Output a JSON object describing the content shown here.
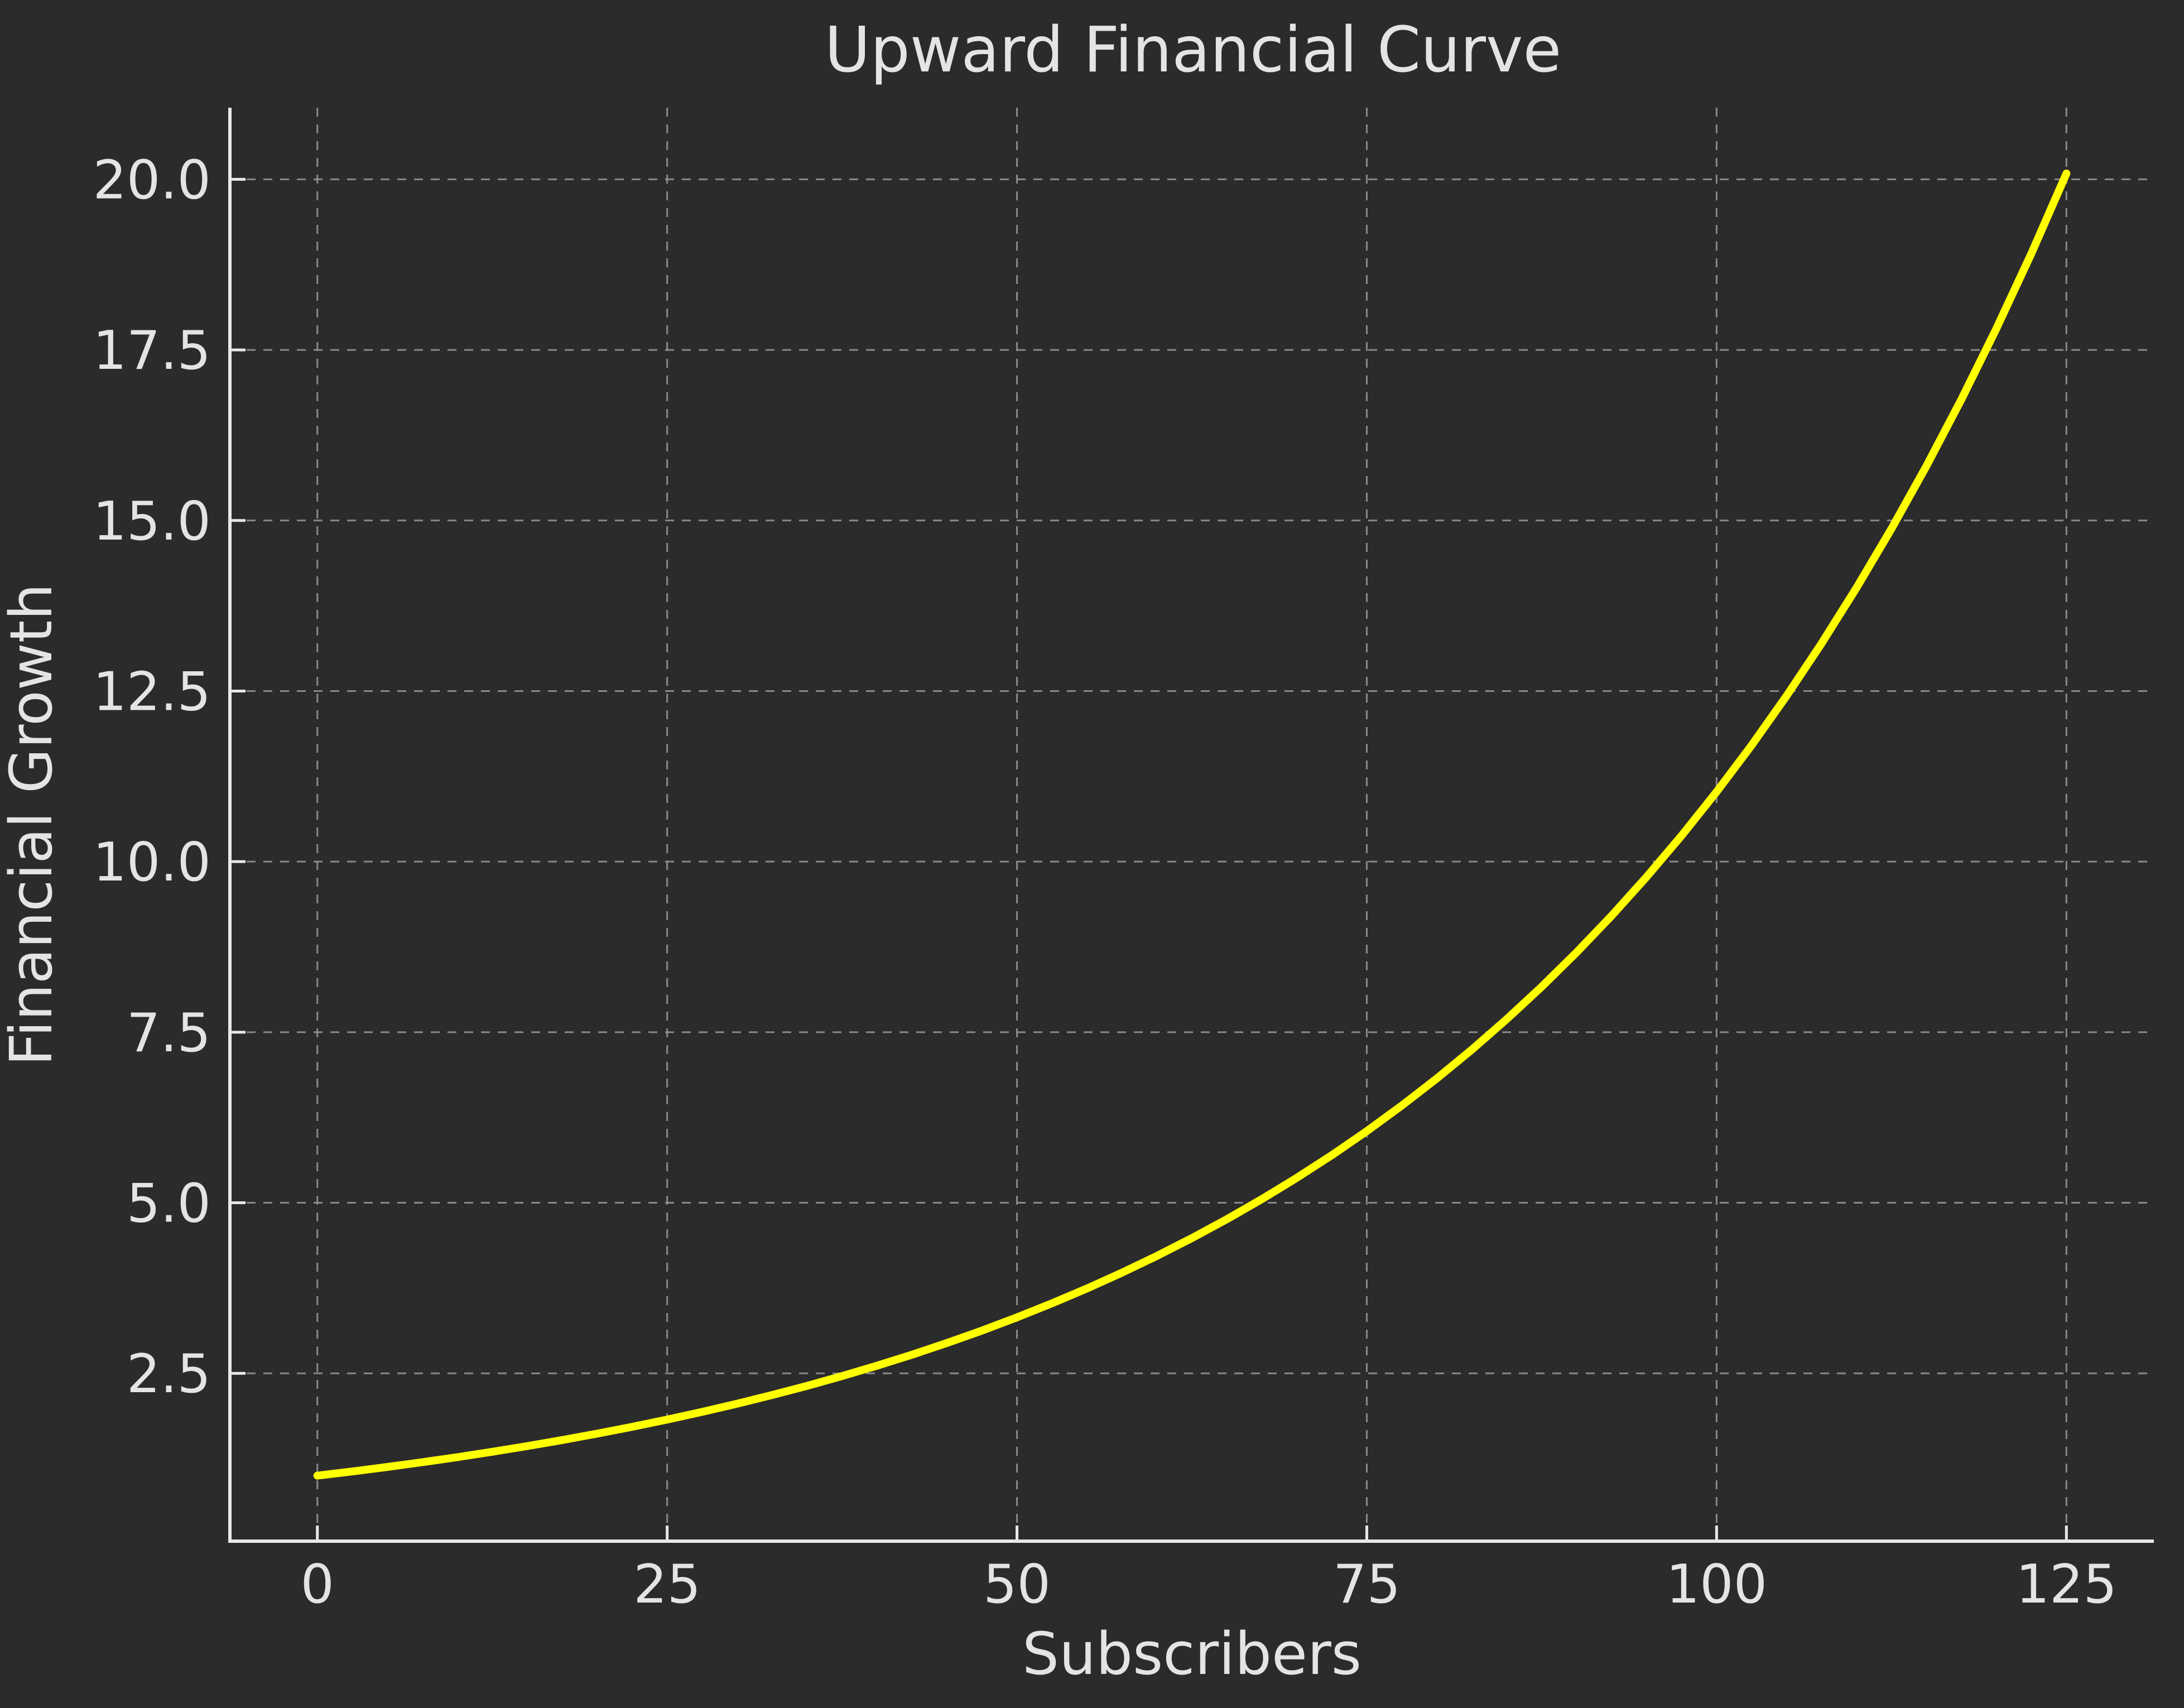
{
  "chart_data": {
    "type": "line",
    "title": "Upward Financial Curve",
    "xlabel": "Subscribers",
    "ylabel": "Financial Growth",
    "x": [
      0,
      2.5,
      5,
      7.5,
      10,
      12.5,
      15,
      17.5,
      20,
      22.5,
      25,
      27.5,
      30,
      32.5,
      35,
      37.5,
      40,
      42.5,
      45,
      47.5,
      50,
      52.5,
      55,
      57.5,
      60,
      62.5,
      65,
      67.5,
      70,
      72.5,
      75,
      77.5,
      80,
      82.5,
      85,
      87.5,
      90,
      92.5,
      95,
      97.5,
      100,
      102.5,
      105,
      107.5,
      110,
      112.5,
      115,
      117.5,
      120,
      122.5,
      125
    ],
    "y": [
      1.0,
      1.0618,
      1.1275,
      1.1972,
      1.2712,
      1.3499,
      1.4333,
      1.522,
      1.6161,
      1.716,
      1.8221,
      1.9348,
      2.0544,
      2.1815,
      2.3164,
      2.4596,
      2.6117,
      2.7732,
      2.9447,
      3.1268,
      3.3201,
      3.5254,
      3.7434,
      3.9749,
      4.2207,
      4.4817,
      4.7588,
      5.0531,
      5.3656,
      5.6973,
      6.0496,
      6.4237,
      6.821,
      7.2427,
      7.6906,
      8.1662,
      8.6711,
      9.2073,
      9.7767,
      10.3812,
      11.0232,
      11.7048,
      12.4286,
      13.1971,
      14.0132,
      14.8797,
      15.7998,
      16.7768,
      17.8143,
      18.9158,
      20.0855
    ],
    "curve_formula": "y = exp(0.024 * x)",
    "x_ticks": [
      0,
      25,
      50,
      75,
      100,
      125
    ],
    "x_tick_labels": [
      "0",
      "25",
      "50",
      "75",
      "100",
      "125"
    ],
    "y_ticks": [
      2.5,
      5.0,
      7.5,
      10.0,
      12.5,
      15.0,
      17.5,
      20.0
    ],
    "y_tick_labels": [
      "2.5",
      "5.0",
      "7.5",
      "10.0",
      "12.5",
      "15.0",
      "17.5",
      "20.0"
    ],
    "xlim": [
      -6.25,
      131.25
    ],
    "ylim": [
      0.04,
      21.05
    ],
    "grid": "dashed",
    "legend": "none",
    "colors": {
      "background": "#2b2b2b",
      "line": "#ffff00",
      "grid": "#9a9a9a",
      "spine": "#e8e8e8",
      "text": "#e4e4e4"
    },
    "line_width": 14
  }
}
